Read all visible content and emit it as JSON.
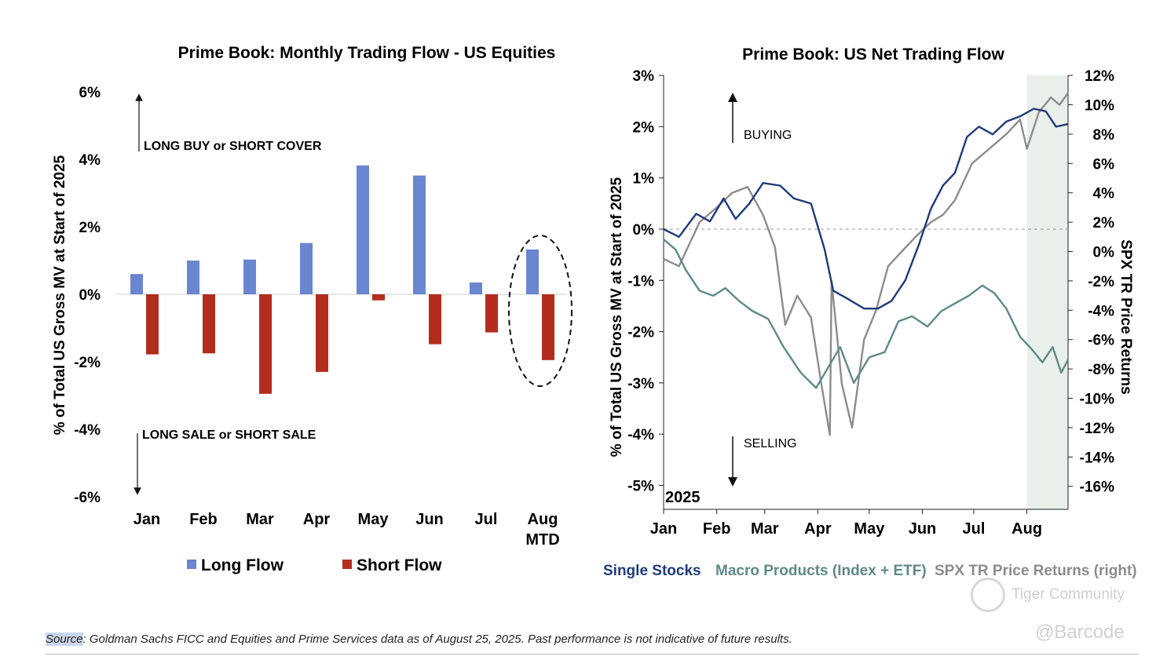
{
  "left_chart": {
    "title": "Prime Book: Monthly Trading Flow - US Equities",
    "ylabel": "% of Total US Gross MV at Start of 2025",
    "y_ticks": [
      "6%",
      "4%",
      "2%",
      "0%",
      "-2%",
      "-4%",
      "-6%"
    ],
    "annotation_up": "LONG BUY or SHORT COVER",
    "annotation_down": "LONG SALE or SHORT SALE",
    "legend": [
      "Long Flow",
      "Short Flow"
    ]
  },
  "right_chart": {
    "title": "Prime Book: US Net Trading Flow",
    "ylabel_left": "% of Total US Gross MV at Start of 2025",
    "ylabel_right": "SPX TR Price Returns",
    "y_left_ticks": [
      "3%",
      "2%",
      "1%",
      "0%",
      "-1%",
      "-2%",
      "-3%",
      "-4%",
      "-5%"
    ],
    "y_right_ticks": [
      "12%",
      "10%",
      "8%",
      "6%",
      "4%",
      "2%",
      "0%",
      "-2%",
      "-4%",
      "-6%",
      "-8%",
      "-10%",
      "-12%",
      "-14%",
      "-16%"
    ],
    "x_ticks": [
      "Jan",
      "Feb",
      "Mar",
      "Apr",
      "May",
      "Jun",
      "Jul",
      "Aug"
    ],
    "year_label": "2025",
    "buying_label": "BUYING",
    "selling_label": "SELLING",
    "legend": [
      "Single Stocks",
      "Macro Products (Index + ETF)",
      "SPX TR Price Returns (right)"
    ]
  },
  "source": {
    "prefix": "Source",
    "text": ": Goldman Sachs FICC and Equities and Prime Services data as of August 25, 2025. Past performance is not indicative of future results."
  },
  "watermark": {
    "community": "Tiger Community",
    "handle": "@Barcode"
  },
  "chart_data": [
    {
      "type": "bar",
      "title": "Prime Book: Monthly Trading Flow - US Equities",
      "ylabel": "% of Total US Gross MV at Start of 2025",
      "ylim": [
        -6,
        6
      ],
      "categories": [
        "Jan",
        "Feb",
        "Mar",
        "Apr",
        "May",
        "Jun",
        "Jul",
        "Aug MTD"
      ],
      "highlighted_category": "Aug MTD",
      "series": [
        {
          "name": "Long Flow",
          "color": "#6a86d1",
          "values": [
            0.6,
            1.0,
            1.03,
            1.52,
            3.82,
            3.52,
            0.35,
            1.33
          ]
        },
        {
          "name": "Short Flow",
          "color": "#b22d1e",
          "values": [
            -1.78,
            -1.75,
            -2.95,
            -2.3,
            -0.18,
            -1.48,
            -1.13,
            -1.95
          ]
        }
      ],
      "legend_position": "bottom"
    },
    {
      "type": "line",
      "title": "Prime Book: US Net Trading Flow",
      "ylabel_left": "% of Total US Gross MV at Start of 2025",
      "ylabel_right": "SPX TR Price Returns",
      "ylim_left": [
        -5,
        3
      ],
      "ylim_right": [
        -16,
        12
      ],
      "x_range": [
        "2025-01-01",
        "2025-08-25"
      ],
      "shaded_region": [
        "2025-08-01",
        "2025-08-25"
      ],
      "zero_line": "dashed",
      "legend_position": "bottom",
      "series": [
        {
          "name": "Single Stocks",
          "axis": "left",
          "color": "#1f3b7a",
          "points": [
            [
              "2025-01-01",
              0.0
            ],
            [
              "2025-01-10",
              -0.15
            ],
            [
              "2025-01-20",
              0.3
            ],
            [
              "2025-01-28",
              0.15
            ],
            [
              "2025-02-05",
              0.6
            ],
            [
              "2025-02-12",
              0.2
            ],
            [
              "2025-02-20",
              0.5
            ],
            [
              "2025-02-28",
              0.9
            ],
            [
              "2025-03-10",
              0.85
            ],
            [
              "2025-03-18",
              0.6
            ],
            [
              "2025-03-28",
              0.5
            ],
            [
              "2025-04-05",
              -0.4
            ],
            [
              "2025-04-10",
              -1.2
            ],
            [
              "2025-04-18",
              -1.35
            ],
            [
              "2025-04-28",
              -1.55
            ],
            [
              "2025-05-06",
              -1.55
            ],
            [
              "2025-05-14",
              -1.4
            ],
            [
              "2025-05-22",
              -1.0
            ],
            [
              "2025-05-30",
              -0.3
            ],
            [
              "2025-06-06",
              0.4
            ],
            [
              "2025-06-13",
              0.85
            ],
            [
              "2025-06-20",
              1.1
            ],
            [
              "2025-06-27",
              1.8
            ],
            [
              "2025-07-04",
              2.0
            ],
            [
              "2025-07-12",
              1.85
            ],
            [
              "2025-07-20",
              2.1
            ],
            [
              "2025-07-28",
              2.2
            ],
            [
              "2025-08-05",
              2.35
            ],
            [
              "2025-08-12",
              2.3
            ],
            [
              "2025-08-18",
              2.0
            ],
            [
              "2025-08-25",
              2.05
            ]
          ]
        },
        {
          "name": "Macro Products (Index + ETF)",
          "axis": "left",
          "color": "#5e8a89",
          "points": [
            [
              "2025-01-01",
              -0.2
            ],
            [
              "2025-01-08",
              -0.4
            ],
            [
              "2025-01-14",
              -0.8
            ],
            [
              "2025-01-22",
              -1.2
            ],
            [
              "2025-01-30",
              -1.3
            ],
            [
              "2025-02-06",
              -1.15
            ],
            [
              "2025-02-14",
              -1.4
            ],
            [
              "2025-02-22",
              -1.6
            ],
            [
              "2025-03-03",
              -1.75
            ],
            [
              "2025-03-12",
              -2.3
            ],
            [
              "2025-03-22",
              -2.8
            ],
            [
              "2025-03-31",
              -3.1
            ],
            [
              "2025-04-07",
              -2.7
            ],
            [
              "2025-04-14",
              -2.3
            ],
            [
              "2025-04-22",
              -3.0
            ],
            [
              "2025-05-01",
              -2.5
            ],
            [
              "2025-05-10",
              -2.4
            ],
            [
              "2025-05-18",
              -1.8
            ],
            [
              "2025-05-26",
              -1.7
            ],
            [
              "2025-06-04",
              -1.9
            ],
            [
              "2025-06-12",
              -1.6
            ],
            [
              "2025-06-20",
              -1.45
            ],
            [
              "2025-06-28",
              -1.3
            ],
            [
              "2025-07-06",
              -1.1
            ],
            [
              "2025-07-13",
              -1.25
            ],
            [
              "2025-07-20",
              -1.55
            ],
            [
              "2025-07-28",
              -2.1
            ],
            [
              "2025-08-04",
              -2.35
            ],
            [
              "2025-08-10",
              -2.6
            ],
            [
              "2025-08-16",
              -2.3
            ],
            [
              "2025-08-21",
              -2.8
            ],
            [
              "2025-08-25",
              -2.55
            ]
          ]
        },
        {
          "name": "SPX TR Price Returns (right)",
          "axis": "right",
          "color": "#8c8c8c",
          "points": [
            [
              "2025-01-01",
              -0.5
            ],
            [
              "2025-01-10",
              -1.0
            ],
            [
              "2025-01-22",
              2.0
            ],
            [
              "2025-02-01",
              3.0
            ],
            [
              "2025-02-10",
              4.0
            ],
            [
              "2025-02-19",
              4.4
            ],
            [
              "2025-02-28",
              2.5
            ],
            [
              "2025-03-07",
              0.3
            ],
            [
              "2025-03-13",
              -5.0
            ],
            [
              "2025-03-20",
              -3.0
            ],
            [
              "2025-03-28",
              -4.5
            ],
            [
              "2025-04-03",
              -9.0
            ],
            [
              "2025-04-08",
              -12.5
            ],
            [
              "2025-04-09",
              -2.0
            ],
            [
              "2025-04-15",
              -9.0
            ],
            [
              "2025-04-21",
              -12.0
            ],
            [
              "2025-04-28",
              -6.0
            ],
            [
              "2025-05-05",
              -4.0
            ],
            [
              "2025-05-12",
              -1.0
            ],
            [
              "2025-05-20",
              0.0
            ],
            [
              "2025-05-28",
              1.0
            ],
            [
              "2025-06-06",
              2.0
            ],
            [
              "2025-06-13",
              2.5
            ],
            [
              "2025-06-20",
              3.5
            ],
            [
              "2025-06-30",
              6.0
            ],
            [
              "2025-07-10",
              7.0
            ],
            [
              "2025-07-20",
              8.0
            ],
            [
              "2025-07-28",
              9.0
            ],
            [
              "2025-08-01",
              7.0
            ],
            [
              "2025-08-08",
              9.5
            ],
            [
              "2025-08-15",
              10.5
            ],
            [
              "2025-08-20",
              10.0
            ],
            [
              "2025-08-25",
              10.8
            ]
          ]
        }
      ]
    }
  ]
}
